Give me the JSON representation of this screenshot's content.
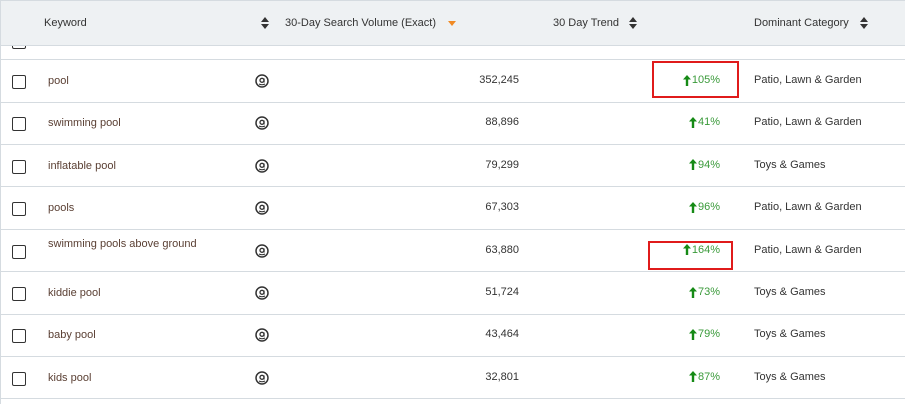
{
  "header": {
    "keyword": "Keyword",
    "search_volume": "30-Day Search Volume (Exact)",
    "trend": "30 Day Trend",
    "category": "Dominant Category"
  },
  "colors": {
    "sort_active": "#f08a24",
    "trend_up": "#168a16",
    "highlight": "#e01b1b"
  },
  "rows": [
    {
      "keyword": "pool",
      "icon": "amazon-icon",
      "volume": "352,245",
      "trend": "105%",
      "category": "Patio, Lawn & Garden",
      "highlighted": true
    },
    {
      "keyword": "swimming pool",
      "icon": "amazon-icon",
      "volume": "88,896",
      "trend": "41%",
      "category": "Patio, Lawn & Garden",
      "highlighted": false
    },
    {
      "keyword": "inflatable pool",
      "icon": "amazon-icon",
      "volume": "79,299",
      "trend": "94%",
      "category": "Toys & Games",
      "highlighted": false
    },
    {
      "keyword": "pools",
      "icon": "amazon-icon",
      "volume": "67,303",
      "trend": "96%",
      "category": "Patio, Lawn & Garden",
      "highlighted": false
    },
    {
      "keyword": "swimming pools above ground",
      "icon": "amazon-icon",
      "volume": "63,880",
      "trend": "164%",
      "category": "Patio, Lawn & Garden",
      "highlighted": true
    },
    {
      "keyword": "kiddie pool",
      "icon": "amazon-icon",
      "volume": "51,724",
      "trend": "73%",
      "category": "Toys & Games",
      "highlighted": false
    },
    {
      "keyword": "baby pool",
      "icon": "amazon-icon",
      "volume": "43,464",
      "trend": "79%",
      "category": "Toys & Games",
      "highlighted": false
    },
    {
      "keyword": "kids pool",
      "icon": "amazon-icon",
      "volume": "32,801",
      "trend": "87%",
      "category": "Toys & Games",
      "highlighted": false
    }
  ]
}
